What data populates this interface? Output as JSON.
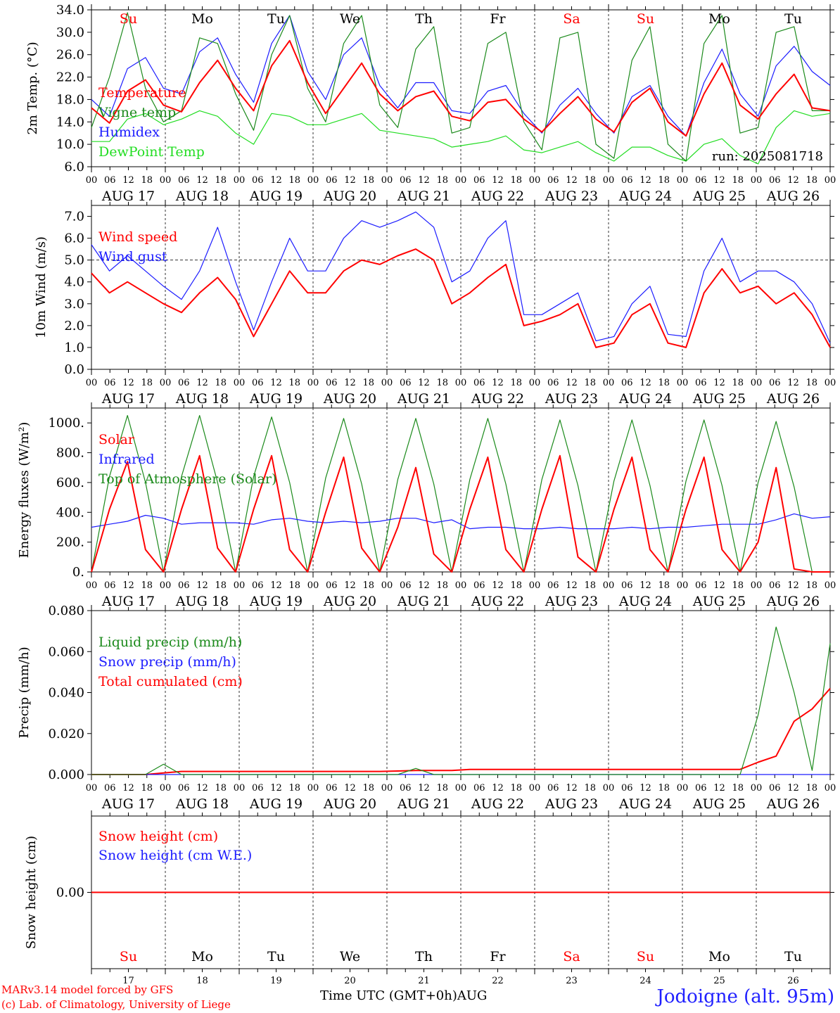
{
  "colors": {
    "red": "#ff0000",
    "green": "#1b8a1b",
    "blue": "#1c1cff",
    "lime": "#22dd22",
    "axis": "#000000",
    "weekend": "#ff0000"
  },
  "day_abbrev": [
    "Su",
    "Mo",
    "Tu",
    "We",
    "Th",
    "Fr",
    "Sa",
    "Su",
    "Mo",
    "Tu"
  ],
  "day_is_weekend": [
    true,
    false,
    false,
    false,
    false,
    false,
    true,
    true,
    false,
    false
  ],
  "day_dates": [
    "AUG 17",
    "AUG 18",
    "AUG 19",
    "AUG 20",
    "AUG 21",
    "AUG 22",
    "AUG 23",
    "AUG 24",
    "AUG 25",
    "AUG 26"
  ],
  "day_numbers": [
    "17",
    "18",
    "19",
    "20",
    "21",
    "22",
    "23",
    "24",
    "25",
    "26"
  ],
  "hour_ticks": [
    "00",
    "06",
    "12",
    "18"
  ],
  "footer": {
    "model": "MARv3.14 model forced by GFS",
    "copyright": "(c) Lab. of Climatology, University of Liege",
    "x_title": "Time UTC (GMT+0h)",
    "month": "AUG",
    "station": "Jodoigne (alt. 95m)"
  },
  "chart_data": [
    {
      "id": "temperature",
      "type": "line",
      "ylabel": "2m Temp. (°C)",
      "ylim": [
        6.0,
        34.0
      ],
      "yticks": [
        "6.0",
        "10.0",
        "14.0",
        "18.0",
        "22.0",
        "26.0",
        "30.0",
        "34.0"
      ],
      "annotation": "run: 2025081718",
      "x_hours_step": 6,
      "series": [
        {
          "name": "Temperature",
          "color": "red",
          "values": [
            16.5,
            13.8,
            19.5,
            21.5,
            17.0,
            15.8,
            21.0,
            25.0,
            20.0,
            16.0,
            24.0,
            28.5,
            21.0,
            15.5,
            20.0,
            24.5,
            19.0,
            16.0,
            18.5,
            19.5,
            15.0,
            14.2,
            17.5,
            18.0,
            14.5,
            12.2,
            15.5,
            18.5,
            14.5,
            12.2,
            17.5,
            20.0,
            14.0,
            11.5,
            19.0,
            24.5,
            17.0,
            14.5,
            19.0,
            22.5,
            16.5,
            16.0
          ]
        },
        {
          "name": "Vigne temp",
          "color": "green",
          "values": [
            13.0,
            22.0,
            33.5,
            20.0,
            14.0,
            16.0,
            29.0,
            28.0,
            19.0,
            12.5,
            26.0,
            33.0,
            20.0,
            14.0,
            28.0,
            33.0,
            17.0,
            13.0,
            27.0,
            31.0,
            12.0,
            13.0,
            28.0,
            30.0,
            14.0,
            9.0,
            29.0,
            30.0,
            10.0,
            7.5,
            25.0,
            31.0,
            10.0,
            7.0,
            28.0,
            33.0,
            12.0,
            13.0,
            30.0,
            31.0,
            16.0,
            16.0
          ]
        },
        {
          "name": "Humidex",
          "color": "blue",
          "values": [
            18.0,
            15.0,
            23.5,
            25.5,
            20.0,
            19.0,
            26.5,
            29.0,
            22.5,
            17.5,
            28.0,
            33.0,
            23.0,
            18.0,
            26.0,
            29.0,
            20.5,
            16.5,
            21.0,
            21.0,
            16.0,
            15.5,
            19.5,
            20.5,
            15.5,
            12.0,
            17.0,
            20.0,
            15.5,
            12.0,
            18.5,
            20.5,
            15.0,
            11.5,
            21.0,
            27.0,
            19.0,
            15.0,
            24.0,
            27.5,
            23.0,
            20.5
          ]
        },
        {
          "name": "DewPoint Temp",
          "color": "lime",
          "values": [
            10.5,
            10.5,
            14.5,
            15.5,
            13.5,
            14.5,
            16.0,
            15.0,
            12.0,
            10.0,
            15.5,
            15.0,
            13.5,
            13.5,
            14.5,
            15.5,
            12.5,
            12.0,
            11.5,
            11.0,
            9.5,
            10.0,
            10.5,
            11.5,
            9.0,
            8.5,
            9.5,
            10.5,
            8.5,
            7.0,
            9.5,
            9.5,
            8.0,
            7.0,
            10.0,
            11.0,
            8.0,
            6.5,
            13.0,
            16.0,
            15.0,
            15.5
          ]
        }
      ],
      "legend_order": [
        "Temperature",
        "Vigne temp",
        "Humidex",
        "DewPoint Temp"
      ],
      "grid": false
    },
    {
      "id": "wind",
      "type": "line",
      "ylabel": "10m Wind (m/s)",
      "ylim": [
        0.0,
        7.5
      ],
      "yticks": [
        "0.0",
        "1.0",
        "2.0",
        "3.0",
        "4.0",
        "5.0",
        "6.0",
        "7.0"
      ],
      "reference_line": 5.0,
      "x_hours_step": 6,
      "series": [
        {
          "name": "Wind speed",
          "color": "red",
          "values": [
            4.4,
            3.5,
            4.0,
            3.5,
            3.0,
            2.6,
            3.5,
            4.2,
            3.2,
            1.5,
            3.0,
            4.5,
            3.5,
            3.5,
            4.5,
            5.0,
            4.8,
            5.2,
            5.5,
            5.0,
            3.0,
            3.5,
            4.2,
            4.8,
            2.0,
            2.2,
            2.5,
            3.0,
            1.0,
            1.2,
            2.5,
            3.0,
            1.2,
            1.0,
            3.5,
            4.6,
            3.5,
            3.8,
            3.0,
            3.5,
            2.5,
            1.0
          ]
        },
        {
          "name": "Wind gust",
          "color": "blue",
          "values": [
            5.7,
            4.5,
            5.2,
            4.5,
            3.8,
            3.2,
            4.5,
            6.5,
            4.0,
            1.8,
            4.0,
            6.0,
            4.5,
            4.5,
            6.0,
            6.8,
            6.5,
            6.8,
            7.2,
            6.5,
            4.0,
            4.5,
            6.0,
            6.8,
            2.5,
            2.5,
            3.0,
            3.5,
            1.3,
            1.5,
            3.0,
            3.8,
            1.6,
            1.5,
            4.5,
            6.0,
            4.0,
            4.5,
            4.5,
            4.0,
            3.0,
            1.2
          ]
        }
      ],
      "legend_order": [
        "Wind speed",
        "Wind gust"
      ],
      "grid": false
    },
    {
      "id": "energy",
      "type": "line",
      "ylabel": "Energy fluxes (W/m²)",
      "ylim": [
        0,
        1100
      ],
      "yticks": [
        "0.",
        "200.",
        "400.",
        "600.",
        "800.",
        "1000."
      ],
      "x_hours_step": 6,
      "series": [
        {
          "name": "Solar",
          "color": "red",
          "values": [
            0,
            420,
            740,
            150,
            0,
            420,
            780,
            160,
            0,
            420,
            780,
            150,
            0,
            400,
            770,
            160,
            0,
            300,
            700,
            120,
            0,
            420,
            770,
            150,
            0,
            420,
            780,
            100,
            0,
            420,
            770,
            150,
            0,
            420,
            770,
            150,
            0,
            200,
            700,
            20,
            0,
            0
          ]
        },
        {
          "name": "Infrared",
          "color": "blue",
          "values": [
            300,
            320,
            340,
            380,
            360,
            320,
            330,
            330,
            330,
            320,
            350,
            360,
            340,
            330,
            340,
            330,
            340,
            360,
            360,
            330,
            350,
            290,
            300,
            300,
            290,
            290,
            300,
            290,
            290,
            290,
            300,
            290,
            300,
            300,
            310,
            320,
            320,
            320,
            350,
            390,
            360,
            370
          ]
        },
        {
          "name": "Top of Atmosphere (Solar)",
          "color": "green",
          "values": [
            0,
            640,
            1050,
            600,
            0,
            640,
            1050,
            600,
            0,
            640,
            1040,
            600,
            0,
            630,
            1030,
            590,
            0,
            620,
            1030,
            590,
            0,
            620,
            1030,
            590,
            0,
            620,
            1020,
            580,
            0,
            610,
            1020,
            580,
            0,
            610,
            1020,
            580,
            0,
            600,
            1010,
            570,
            0,
            0
          ]
        }
      ],
      "legend_order": [
        "Solar",
        "Infrared",
        "Top of Atmosphere (Solar)"
      ],
      "grid": false
    },
    {
      "id": "precip",
      "type": "line",
      "ylabel": "Precip (mm/h)",
      "ylim": [
        0.0,
        0.08
      ],
      "yticks": [
        "0.000",
        "0.020",
        "0.040",
        "0.060",
        "0.080"
      ],
      "x_hours_step": 6,
      "series": [
        {
          "name": "Liquid precip (mm/h)",
          "color": "green",
          "values": [
            0,
            0,
            0,
            0,
            0.005,
            0,
            0,
            0,
            0,
            0,
            0,
            0,
            0,
            0,
            0,
            0,
            0,
            0,
            0.003,
            0,
            0,
            0,
            0,
            0,
            0,
            0,
            0,
            0,
            0,
            0,
            0,
            0,
            0,
            0,
            0,
            0,
            0,
            0.029,
            0.072,
            0.04,
            0.002,
            0.064
          ]
        },
        {
          "name": "Snow precip (mm/h)",
          "color": "blue",
          "values": [
            0,
            0,
            0,
            0,
            0,
            0,
            0,
            0,
            0,
            0,
            0,
            0,
            0,
            0,
            0,
            0,
            0,
            0,
            0,
            0,
            0,
            0,
            0,
            0,
            0,
            0,
            0,
            0,
            0,
            0,
            0,
            0,
            0,
            0,
            0,
            0,
            0,
            0,
            0,
            0,
            0,
            0
          ]
        },
        {
          "name": "Total cumulated (cm)",
          "color": "red",
          "values": [
            0,
            0,
            0,
            0,
            0.0008,
            0.0015,
            0.0015,
            0.0015,
            0.0015,
            0.0015,
            0.0015,
            0.0015,
            0.0015,
            0.0015,
            0.0015,
            0.0015,
            0.0015,
            0.0017,
            0.002,
            0.002,
            0.002,
            0.0025,
            0.0025,
            0.0025,
            0.0025,
            0.0025,
            0.0025,
            0.0025,
            0.0025,
            0.0025,
            0.0025,
            0.0025,
            0.0025,
            0.0025,
            0.0025,
            0.0025,
            0.0025,
            0.006,
            0.009,
            0.026,
            0.032,
            0.042
          ]
        }
      ],
      "legend_order": [
        "Liquid precip (mm/h)",
        "Snow precip (mm/h)",
        "Total cumulated (cm)"
      ],
      "grid": false
    },
    {
      "id": "snow",
      "type": "line",
      "ylabel": "Snow height (cm)",
      "ylim": [
        -1,
        1
      ],
      "yticks": [
        "0.00"
      ],
      "x_hours_step": 6,
      "series": [
        {
          "name": "Snow height (cm)",
          "color": "red",
          "values": [
            0,
            0,
            0,
            0,
            0,
            0,
            0,
            0,
            0,
            0,
            0,
            0,
            0,
            0,
            0,
            0,
            0,
            0,
            0,
            0,
            0,
            0,
            0,
            0,
            0,
            0,
            0,
            0,
            0,
            0,
            0,
            0,
            0,
            0,
            0,
            0,
            0,
            0,
            0,
            0,
            0,
            0
          ]
        },
        {
          "name": "Snow height (cm W.E.)",
          "color": "blue",
          "values": [
            0,
            0,
            0,
            0,
            0,
            0,
            0,
            0,
            0,
            0,
            0,
            0,
            0,
            0,
            0,
            0,
            0,
            0,
            0,
            0,
            0,
            0,
            0,
            0,
            0,
            0,
            0,
            0,
            0,
            0,
            0,
            0,
            0,
            0,
            0,
            0,
            0,
            0,
            0,
            0,
            0,
            0
          ]
        }
      ],
      "legend_order": [
        "Snow height (cm)",
        "Snow height (cm W.E.)"
      ],
      "grid": false
    }
  ]
}
